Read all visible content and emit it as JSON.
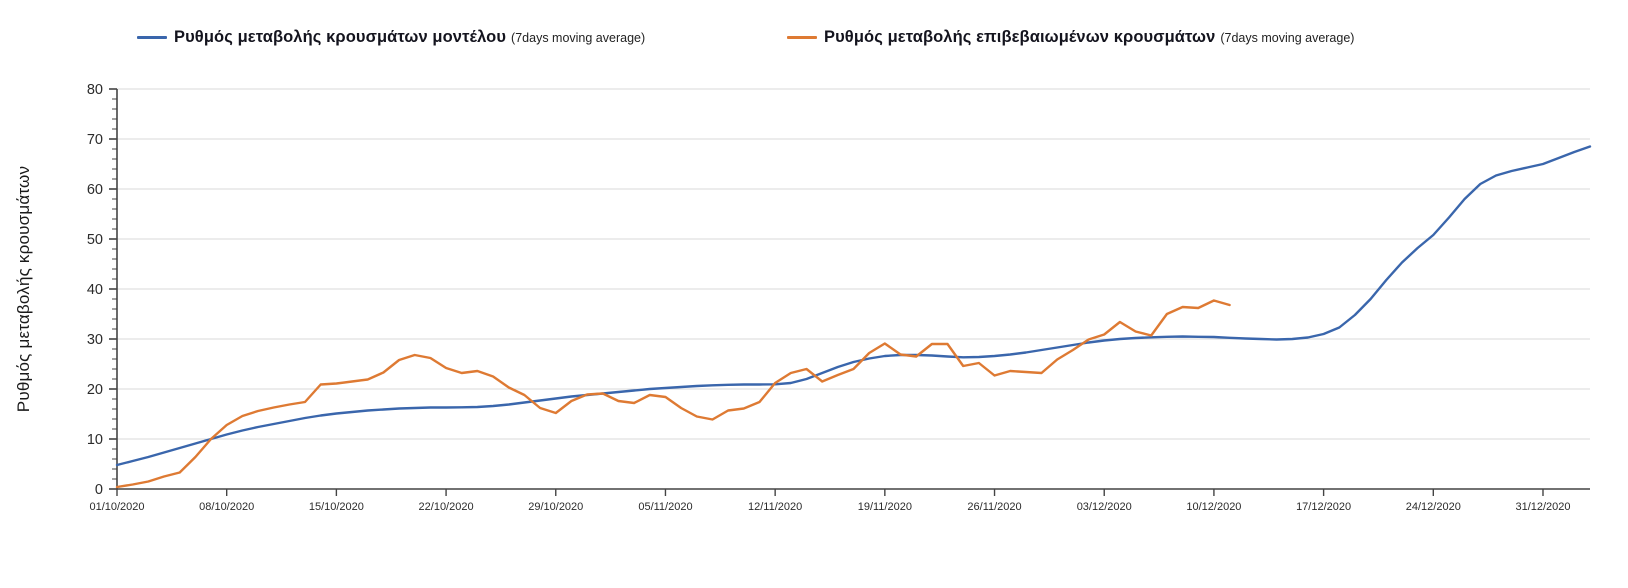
{
  "chart_data": {
    "type": "line",
    "title": "",
    "xlabel": "",
    "ylabel": "Ρυθμός μεταβολής κρουσμάτων",
    "ylim": [
      0,
      80
    ],
    "y_major_step": 10,
    "y_minor_step": 2,
    "y_tick_values": [
      0,
      10,
      20,
      30,
      40,
      50,
      60,
      70,
      80
    ],
    "grid": "horizontal-light-gray",
    "legend_position": "top",
    "background": "#ffffff",
    "gridline_color": "#d9d9d9",
    "axis_color": "#444444",
    "start_date": "01/10/2020",
    "x_range_days": [
      0,
      94
    ],
    "x_tick_days": [
      0,
      7,
      14,
      21,
      28,
      35,
      42,
      49,
      56,
      63,
      70,
      77,
      84,
      91
    ],
    "x_tick_labels": [
      "01/10/2020",
      "08/10/2020",
      "15/10/2020",
      "22/10/2020",
      "29/10/2020",
      "05/11/2020",
      "12/11/2020",
      "19/11/2020",
      "26/11/2020",
      "03/12/2020",
      "10/12/2020",
      "17/12/2020",
      "24/12/2020",
      "31/12/2020"
    ],
    "series": [
      {
        "name": "Ρυθμός μεταβολής κρουσμάτων μοντέλου",
        "name_suffix": "(7days moving average)",
        "color": "#3a66ac",
        "start_day": 0,
        "values": [
          4.8,
          5.6,
          6.4,
          7.3,
          8.2,
          9.1,
          10.0,
          10.9,
          11.7,
          12.4,
          13.0,
          13.6,
          14.2,
          14.7,
          15.1,
          15.4,
          15.7,
          15.9,
          16.1,
          16.2,
          16.3,
          16.3,
          16.35,
          16.4,
          16.6,
          16.9,
          17.3,
          17.7,
          18.1,
          18.5,
          18.8,
          19.1,
          19.4,
          19.7,
          20.0,
          20.2,
          20.4,
          20.6,
          20.75,
          20.85,
          20.9,
          20.9,
          20.95,
          21.2,
          22.0,
          23.2,
          24.4,
          25.4,
          26.1,
          26.6,
          26.8,
          26.8,
          26.7,
          26.5,
          26.35,
          26.4,
          26.6,
          26.9,
          27.3,
          27.8,
          28.3,
          28.8,
          29.3,
          29.7,
          30.0,
          30.2,
          30.35,
          30.45,
          30.5,
          30.45,
          30.4,
          30.25,
          30.1,
          30.0,
          29.9,
          30.0,
          30.3,
          31.0,
          32.3,
          34.8,
          38.0,
          41.8,
          45.3,
          48.2,
          50.8,
          54.3,
          58.0,
          61.0,
          62.7,
          63.6,
          64.3,
          65.0,
          66.2,
          67.4,
          68.5
        ]
      },
      {
        "name": "Ρυθμός μεταβολής επιβεβαιωμένων κρουσμάτων",
        "name_suffix": "(7days moving average)",
        "color": "#de7a33",
        "start_day": 0,
        "values": [
          0.4,
          0.9,
          1.5,
          2.5,
          3.3,
          6.4,
          10.0,
          12.8,
          14.6,
          15.6,
          16.3,
          16.9,
          17.4,
          20.9,
          21.1,
          21.5,
          21.9,
          23.3,
          25.8,
          26.8,
          26.2,
          24.2,
          23.2,
          23.6,
          22.5,
          20.3,
          18.8,
          16.2,
          15.2,
          17.6,
          18.9,
          19.1,
          17.6,
          17.2,
          18.8,
          18.4,
          16.2,
          14.5,
          13.9,
          15.7,
          16.1,
          17.4,
          21.2,
          23.2,
          24.0,
          21.5,
          22.8,
          24.0,
          27.2,
          29.1,
          26.9,
          26.5,
          29.0,
          29.0,
          24.6,
          25.2,
          22.7,
          23.6,
          23.4,
          23.2,
          25.9,
          27.8,
          29.9,
          30.9,
          33.4,
          31.5,
          30.7,
          35.0,
          36.4,
          36.2,
          37.7,
          36.8
        ]
      }
    ]
  }
}
